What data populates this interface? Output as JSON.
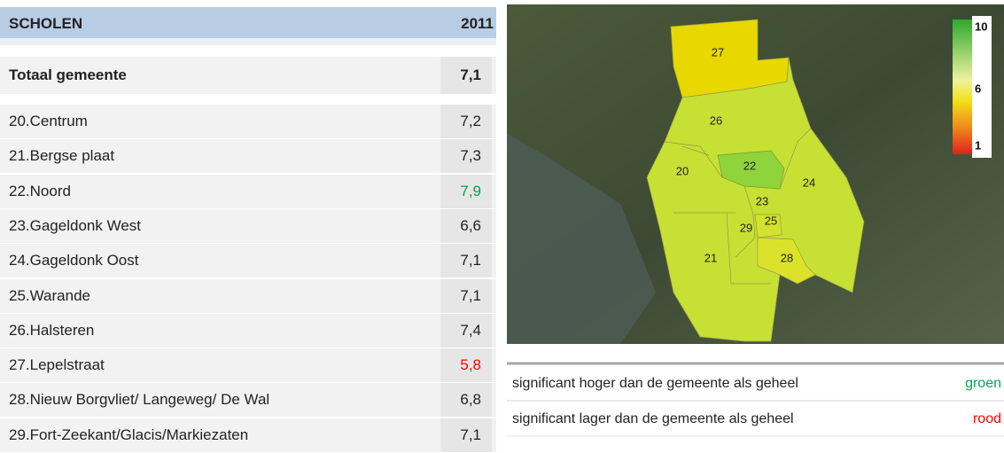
{
  "header": {
    "title": "SCHOLEN",
    "year": "2011"
  },
  "total": {
    "name": "Totaal gemeente",
    "value": "7,1"
  },
  "rows": [
    {
      "name": "20.Centrum",
      "value": "7,2"
    },
    {
      "name": "21.Bergse plaat",
      "value": "7,3"
    },
    {
      "name": "22.Noord",
      "value": "7,9",
      "color": "#00a651"
    },
    {
      "name": "23.Gageldonk West",
      "value": "6,6"
    },
    {
      "name": "24.Gageldonk Oost",
      "value": "7,1"
    },
    {
      "name": "25.Warande",
      "value": "7,1"
    },
    {
      "name": "26.Halsteren",
      "value": "7,4"
    },
    {
      "name": "27.Lepelstraat",
      "value": "5,8",
      "color": "#ff0000"
    },
    {
      "name": "28.Nieuw Borgvliet/ Langeweg/ De Wal",
      "value": "6,8"
    },
    {
      "name": "29.Fort-Zeekant/Glacis/Markiezaten",
      "value": "7,1"
    }
  ],
  "map": {
    "labels": [
      "27",
      "26",
      "20",
      "22",
      "23",
      "24",
      "25",
      "29",
      "21",
      "28"
    ],
    "scale": [
      "10",
      "6",
      "1"
    ]
  },
  "significance": [
    {
      "text": "significant hoger dan de gemeente als geheel",
      "label": "groen",
      "color": "#00a651"
    },
    {
      "text": "significant lager dan de gemeente als geheel",
      "label": "rood",
      "color": "#ff0000"
    }
  ]
}
